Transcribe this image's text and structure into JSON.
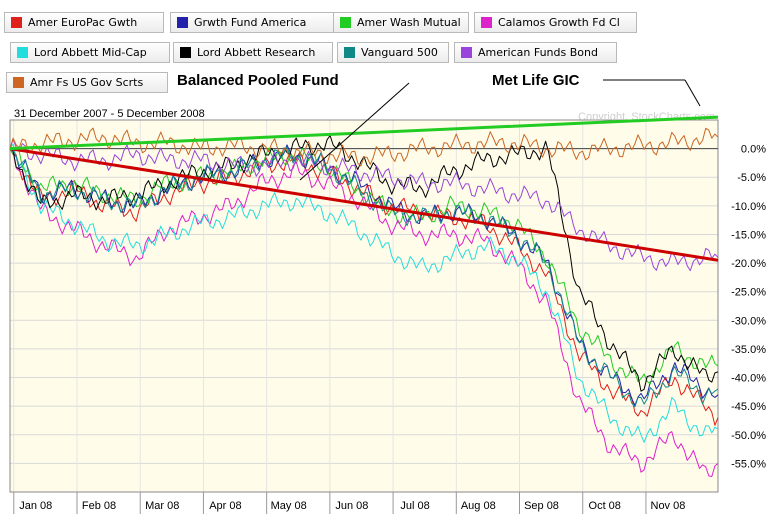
{
  "legend": [
    {
      "label": "Amer EuroPac Gwth",
      "color": "#e0201a"
    },
    {
      "label": "Grwth Fund America",
      "color": "#2222aa"
    },
    {
      "label": "Amer Wash Mutual",
      "color": "#22cc22"
    },
    {
      "label": "Calamos Growth Fd Cl",
      "color": "#dd22cc"
    },
    {
      "label": "Lord Abbett Mid-Cap",
      "color": "#22dddd"
    },
    {
      "label": "Lord Abbett Research",
      "color": "#000000"
    },
    {
      "label": "Vanguard 500",
      "color": "#118888"
    },
    {
      "label": "American Funds Bond",
      "color": "#9944dd"
    },
    {
      "label": "Amr Fs US Gov Scrts",
      "color": "#cc6622"
    }
  ],
  "annotations": {
    "balanced": "Balanced Pooled Fund",
    "metlife": "Met Life GIC"
  },
  "chart_data": {
    "type": "line",
    "date_range": "31 December 2007 - 5 December 2008",
    "watermark": "Copyright, StockCharts.com",
    "x_ticks": [
      "Jan 08",
      "Feb 08",
      "Mar 08",
      "Apr 08",
      "May 08",
      "Jun 08",
      "Jul 08",
      "Aug 08",
      "Sep 08",
      "Oct 08",
      "Nov 08"
    ],
    "y_ticks": [
      "0.0%",
      "-5.0%",
      "-10.0%",
      "-15.0%",
      "-20.0%",
      "-25.0%",
      "-30.0%",
      "-35.0%",
      "-40.0%",
      "-45.0%",
      "-50.0%",
      "-55.0%"
    ],
    "ylim": [
      -60,
      5
    ],
    "x_unit": "months since 31 Dec 2007",
    "x_range": [
      0,
      11.2
    ],
    "series": [
      {
        "name": "Amer EuroPac Gwth",
        "color": "#e0201a",
        "x": [
          0,
          0.5,
          1,
          1.5,
          2,
          2.5,
          3,
          3.5,
          4,
          4.5,
          5,
          5.5,
          6,
          6.5,
          7,
          7.5,
          8,
          8.5,
          9,
          9.5,
          10,
          10.5,
          11,
          11.2
        ],
        "y": [
          0,
          -9,
          -7,
          -10,
          -11,
          -8,
          -6,
          -5,
          -3,
          -2,
          -4,
          -7,
          -10,
          -11,
          -12,
          -13,
          -17,
          -22,
          -36,
          -42,
          -46,
          -40,
          -45,
          -47
        ]
      },
      {
        "name": "Grwth Fund America",
        "color": "#2222aa",
        "x": [
          0,
          0.5,
          1,
          1.5,
          2,
          2.5,
          3,
          3.5,
          4,
          4.5,
          5,
          5.5,
          6,
          6.5,
          7,
          7.5,
          8,
          8.5,
          9,
          9.5,
          10,
          10.5,
          11,
          11.2
        ],
        "y": [
          0,
          -8,
          -7,
          -9,
          -10,
          -7,
          -5,
          -4,
          -2,
          -1,
          -3,
          -6,
          -10,
          -12,
          -11,
          -12,
          -15,
          -20,
          -34,
          -40,
          -44,
          -38,
          -42,
          -43
        ]
      },
      {
        "name": "Amer Wash Mutual",
        "color": "#22cc22",
        "x": [
          0,
          0.5,
          1,
          1.5,
          2,
          2.5,
          3,
          3.5,
          4,
          4.5,
          5,
          5.5,
          6,
          6.5,
          7,
          7.5,
          8,
          8.5,
          9,
          9.5,
          10,
          10.5,
          11,
          11.2
        ],
        "y": [
          0,
          -7,
          -6,
          -8,
          -9,
          -6,
          -5,
          -4,
          -2,
          -1,
          -3,
          -7,
          -11,
          -12,
          -10,
          -11,
          -13,
          -19,
          -31,
          -37,
          -41,
          -35,
          -38,
          -38
        ]
      },
      {
        "name": "Calamos Growth Fd Cl",
        "color": "#dd22cc",
        "x": [
          0,
          0.5,
          1,
          1.5,
          2,
          2.5,
          3,
          3.5,
          4,
          4.5,
          5,
          5.5,
          6,
          6.5,
          7,
          7.5,
          8,
          8.5,
          9,
          9.5,
          10,
          10.5,
          11,
          11.2
        ],
        "y": [
          0,
          -11,
          -14,
          -17,
          -19,
          -14,
          -12,
          -10,
          -6,
          -4,
          -6,
          -9,
          -13,
          -15,
          -15,
          -16,
          -20,
          -27,
          -44,
          -52,
          -55,
          -50,
          -57,
          -55
        ]
      },
      {
        "name": "Lord Abbett Mid-Cap",
        "color": "#22dddd",
        "x": [
          0,
          0.5,
          1,
          1.5,
          2,
          2.5,
          3,
          3.5,
          4,
          4.5,
          5,
          5.5,
          6,
          6.5,
          7,
          7.5,
          8,
          8.5,
          9,
          9.5,
          10,
          10.5,
          11,
          11.2
        ],
        "y": [
          0,
          -10,
          -13,
          -16,
          -17,
          -15,
          -13,
          -12,
          -10,
          -9,
          -11,
          -14,
          -18,
          -21,
          -19,
          -17,
          -19,
          -25,
          -40,
          -47,
          -51,
          -45,
          -50,
          -49
        ]
      },
      {
        "name": "Lord Abbett Research",
        "color": "#000000",
        "x": [
          0,
          0.5,
          1,
          1.5,
          2,
          2.5,
          3,
          3.5,
          4,
          4.5,
          5,
          5.5,
          6,
          6.5,
          7,
          7.5,
          8,
          8.5,
          9,
          9.5,
          10,
          10.5,
          11,
          11.2
        ],
        "y": [
          0,
          -10,
          -8,
          -9,
          -8,
          -6,
          -4,
          -3,
          -1,
          0,
          1,
          -2,
          -6,
          -7,
          -4,
          -2,
          -1,
          0,
          -25,
          -34,
          -41,
          -35,
          -40,
          -39
        ]
      },
      {
        "name": "Vanguard 500",
        "color": "#118888",
        "x": [
          0,
          0.5,
          1,
          1.5,
          2,
          2.5,
          3,
          3.5,
          4,
          4.5,
          5,
          5.5,
          6,
          6.5,
          7,
          7.5,
          8,
          8.5,
          9,
          9.5,
          10,
          10.5,
          11,
          11.2
        ],
        "y": [
          0,
          -8,
          -7,
          -9,
          -10,
          -7,
          -5,
          -4,
          -2,
          -1,
          -3,
          -7,
          -11,
          -12,
          -11,
          -12,
          -15,
          -20,
          -34,
          -40,
          -45,
          -39,
          -43,
          -42
        ]
      },
      {
        "name": "American Funds Bond",
        "color": "#9944dd",
        "x": [
          0,
          0.5,
          1,
          1.5,
          2,
          2.5,
          3,
          3.5,
          4,
          4.5,
          5,
          5.5,
          6,
          6.5,
          7,
          7.5,
          8,
          8.5,
          9,
          9.5,
          10,
          10.5,
          11,
          11.2
        ],
        "y": [
          0,
          -1,
          -2,
          -2,
          -1,
          -2,
          -2,
          -3,
          -3,
          -2,
          -3,
          -4,
          -5,
          -6,
          -6,
          -7,
          -8,
          -9,
          -14,
          -17,
          -19,
          -20,
          -19,
          -19
        ]
      },
      {
        "name": "Amr Fs US Gov Scrts",
        "color": "#cc6622",
        "x": [
          0,
          0.5,
          1,
          1.5,
          2,
          2.5,
          3,
          3.5,
          4,
          4.5,
          5,
          5.5,
          6,
          6.5,
          7,
          7.5,
          8,
          8.5,
          9,
          9.5,
          10,
          10.5,
          11,
          11.2
        ],
        "y": [
          0,
          1,
          1.5,
          2,
          1,
          1,
          0,
          0.5,
          0,
          -0.5,
          -1,
          -1.5,
          -1,
          0,
          0.5,
          1,
          1,
          0,
          -0.5,
          0,
          0.5,
          1,
          2,
          2
        ]
      },
      {
        "name": "Balanced Pooled Fund",
        "color": "#cc0000",
        "x": [
          0,
          11.2
        ],
        "y": [
          0,
          -19.5
        ]
      },
      {
        "name": "Met Life GIC",
        "color": "#22cc22",
        "x": [
          0,
          11.2
        ],
        "y": [
          0,
          5.5
        ]
      }
    ]
  }
}
